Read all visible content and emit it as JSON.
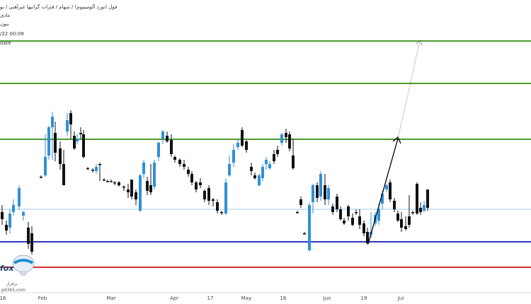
{
  "header": {
    "line1": "فول (نورد آلومینیوم) / سهام / فترات گرانبها غیرآهنی / بو",
    "line2": "عادی",
    "line3": "بنون",
    "timestamp": "/22 00:09",
    "update_label": "date"
  },
  "x_axis": {
    "labels": [
      "16",
      "Feb",
      "Mar",
      "Apr",
      "17",
      "May",
      "16",
      "Jun",
      "19",
      "Jul"
    ]
  },
  "logo": {
    "text": "fox",
    "subtitle": "برفراز",
    "url": "pd365.com"
  },
  "colors": {
    "bull": "#2f8fd8",
    "bear": "#111111",
    "resistance": "#4e9a2e",
    "support_blue": "#2b38c2",
    "support_red": "#d32f2f",
    "price_line": "#7fb8e6"
  },
  "chart_data": {
    "type": "candlestick",
    "horizontal_levels": [
      {
        "name": "green-1",
        "color": "green"
      },
      {
        "name": "green-2",
        "color": "green"
      },
      {
        "name": "green-3",
        "color": "green"
      },
      {
        "name": "blue-support",
        "color": "blue"
      },
      {
        "name": "red-support",
        "color": "red"
      }
    ],
    "projection": "upward arrow from the June low toward the top green level"
  }
}
